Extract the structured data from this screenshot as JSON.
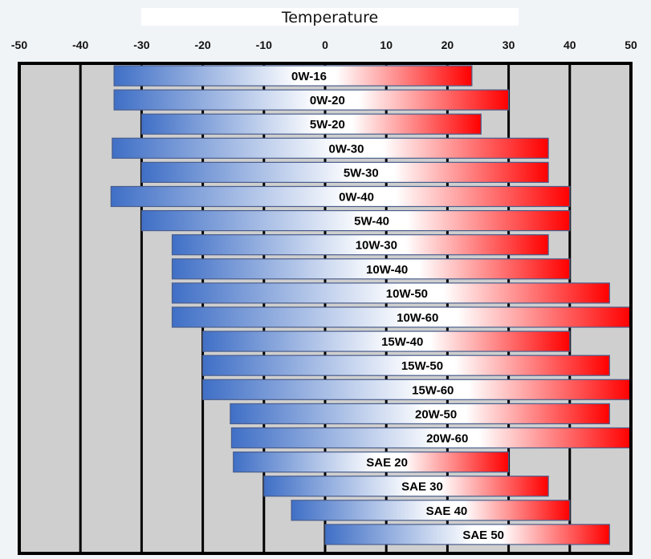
{
  "chart_data": {
    "type": "bar",
    "orientation": "horizontal-range",
    "title": "Temperature",
    "xlim": [
      -50,
      50
    ],
    "xticks": [
      -50,
      -40,
      -30,
      -20,
      -10,
      0,
      10,
      20,
      30,
      40,
      50
    ],
    "grid": true,
    "colors": {
      "cold": "#3f6fc6",
      "mid": "#ffffff",
      "hot": "#ff0000",
      "background": "#cfcfcf",
      "frame": "#000000"
    },
    "categories": [
      "0W-16",
      "0W-20",
      "5W-20",
      "0W-30",
      "5W-30",
      "0W-40",
      "5W-40",
      "10W-30",
      "10W-40",
      "10W-50",
      "10W-60",
      "15W-40",
      "15W-50",
      "15W-60",
      "20W-50",
      "20W-60",
      "SAE 20",
      "SAE 30",
      "SAE 40",
      "SAE 50"
    ],
    "ranges": [
      [
        -34.5,
        24
      ],
      [
        -34.5,
        30
      ],
      [
        -30,
        25.5
      ],
      [
        -34.8,
        36.5
      ],
      [
        -30,
        36.5
      ],
      [
        -35,
        40
      ],
      [
        -30,
        40
      ],
      [
        -25,
        36.5
      ],
      [
        -25,
        40
      ],
      [
        -25,
        46.5
      ],
      [
        -25,
        50
      ],
      [
        -20,
        40
      ],
      [
        -20,
        46.5
      ],
      [
        -20,
        50
      ],
      [
        -15.5,
        46.5
      ],
      [
        -15.3,
        50
      ],
      [
        -15,
        30
      ],
      [
        -10,
        36.5
      ],
      [
        -5.5,
        40
      ],
      [
        0,
        46.5
      ]
    ]
  }
}
